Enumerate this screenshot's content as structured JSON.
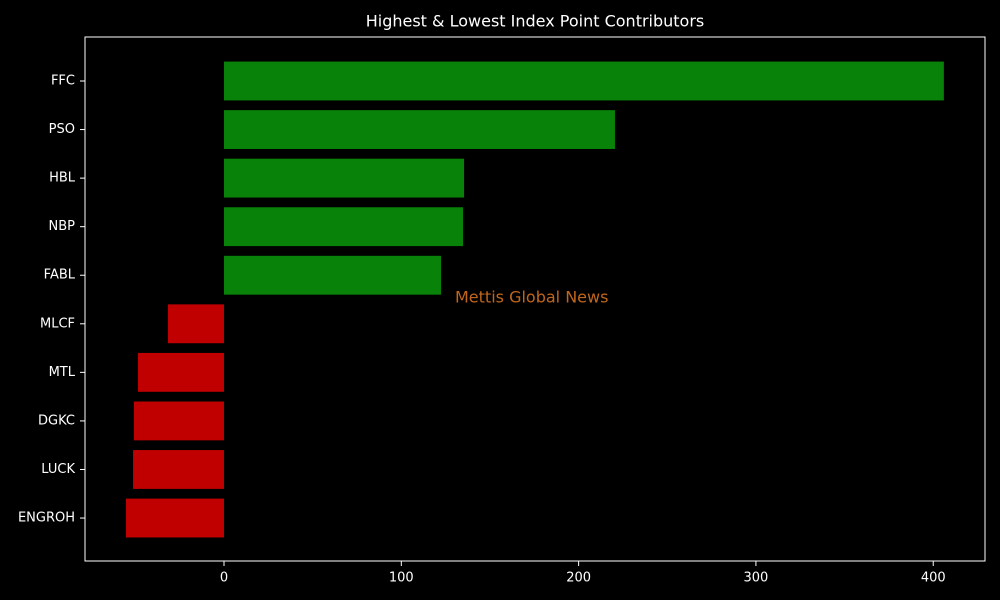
{
  "chart_data": {
    "type": "barh",
    "title": "Highest & Lowest Index Point Contributors",
    "categories": [
      "FFC",
      "PSO",
      "HBL",
      "NBP",
      "FABL",
      "MLCF",
      "MTL",
      "DGKC",
      "LUCK",
      "ENGROH"
    ],
    "values": [
      406,
      220.5,
      135.4,
      134.8,
      122.4,
      -31.6,
      -48.5,
      -50.8,
      -51.3,
      -55.3
    ],
    "colors": [
      "#088208",
      "#088208",
      "#088208",
      "#088208",
      "#088208",
      "#c00000",
      "#c00000",
      "#c00000",
      "#c00000",
      "#c00000"
    ],
    "xlim": [
      -78.4,
      429.2
    ],
    "xticks": [
      0,
      100,
      200,
      300,
      400
    ],
    "annotation": "Mettis Global News",
    "annotation_color": "#c0661c"
  }
}
